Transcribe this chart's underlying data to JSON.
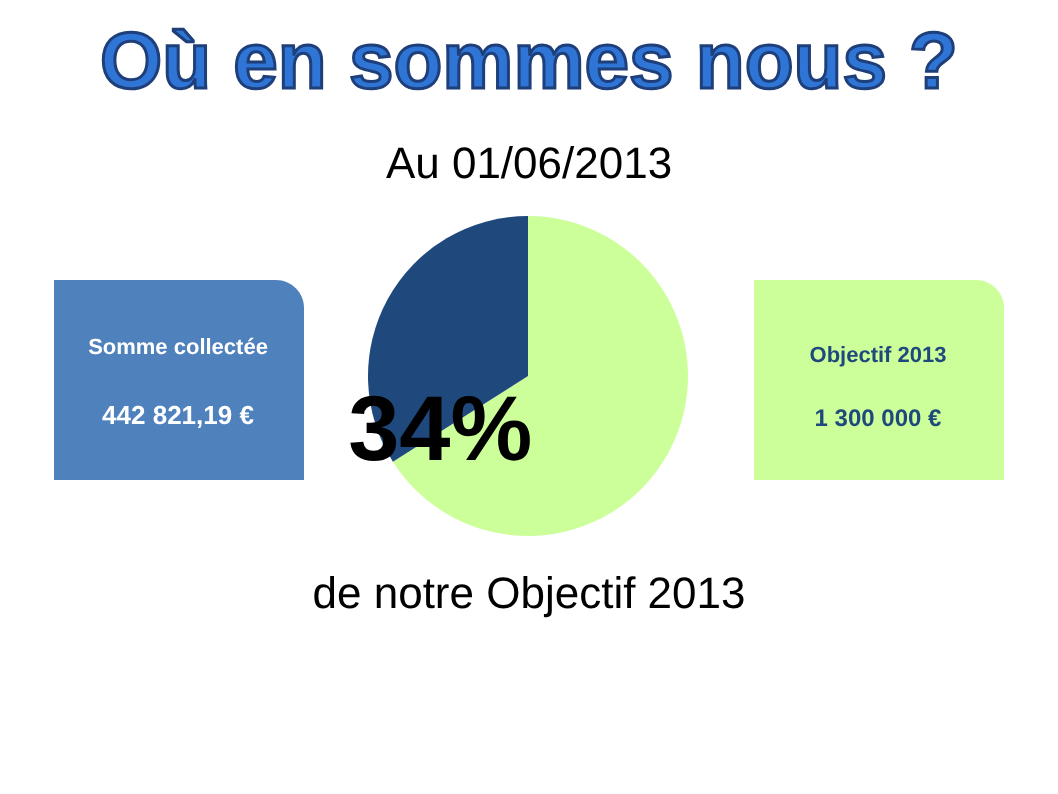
{
  "chart_data": {
    "type": "pie",
    "title": "Où en sommes nous ?",
    "subtitle": "Au 01/06/2013",
    "categories": [
      null,
      null
    ],
    "values": [
      66,
      34
    ],
    "colors": [
      "#ccff99",
      "#1f497d"
    ],
    "value_labels": [
      null,
      "34%"
    ],
    "annotations": [
      "Somme collectée",
      "442 821,19 €",
      "Objectif 2013",
      "1 300 000 €",
      "de notre Objectif 2013"
    ]
  }
}
